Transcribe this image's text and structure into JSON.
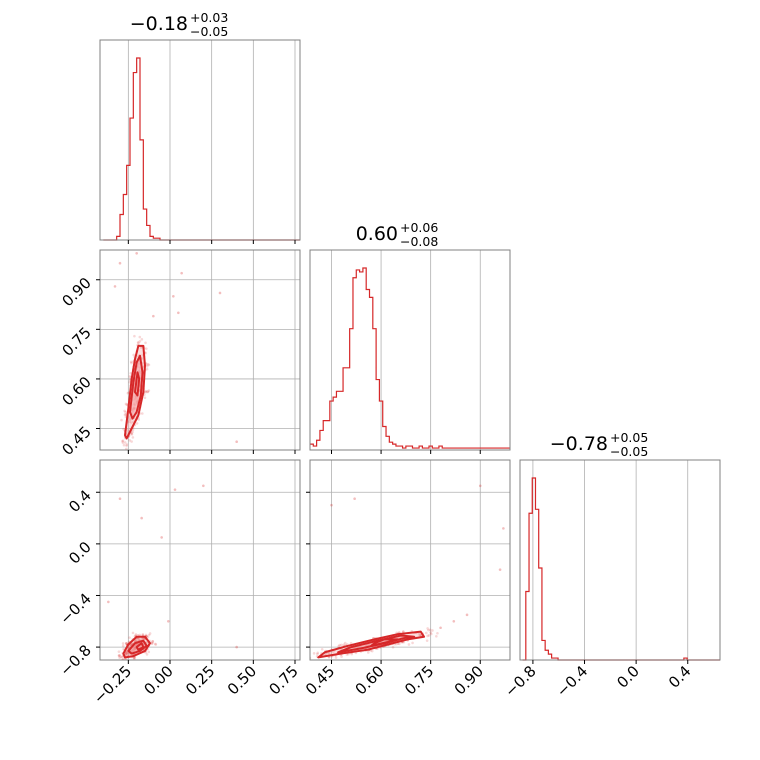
{
  "chart_data": {
    "type": "corner",
    "parameters": [
      {
        "title": {
          "median": "−0.18",
          "plus": "+0.03",
          "minus": "−0.05"
        },
        "range": [
          -0.42,
          0.78
        ],
        "ticks": [
          -0.25,
          0.0,
          0.25,
          0.5,
          0.75
        ],
        "tick_labels": [
          "−0.25",
          "0.00",
          "0.25",
          "0.50",
          "0.75"
        ]
      },
      {
        "title": {
          "median": "0.60",
          "plus": "+0.06",
          "minus": "−0.08"
        },
        "range": [
          0.385,
          0.99
        ],
        "ticks": [
          0.45,
          0.6,
          0.75,
          0.9
        ],
        "tick_labels": [
          "0.45",
          "0.60",
          "0.75",
          "0.90"
        ]
      },
      {
        "title": {
          "median": "−0.78",
          "plus": "+0.05",
          "minus": "−0.05"
        },
        "range": [
          -0.9,
          0.65
        ],
        "ticks": [
          -0.8,
          -0.4,
          0.0,
          0.4
        ],
        "tick_labels": [
          "−0.8",
          "−0.4",
          "0.0",
          "0.4"
        ]
      }
    ],
    "histograms": [
      {
        "param": 0,
        "bin_edges_start": -0.4,
        "bin_width": 0.02,
        "counts": [
          0,
          0,
          0,
          0,
          0.02,
          0.14,
          0.25,
          0.41,
          0.67,
          0.92,
          1.0,
          0.55,
          0.17,
          0.08,
          0.02,
          0.01,
          0.01,
          0,
          0,
          0,
          0,
          0,
          0,
          0,
          0,
          0,
          0,
          0,
          0,
          0,
          0,
          0,
          0,
          0,
          0,
          0,
          0,
          0,
          0,
          0,
          0,
          0,
          0,
          0,
          0,
          0,
          0,
          0,
          0,
          0,
          0,
          0,
          0,
          0,
          0,
          0,
          0,
          0,
          0,
          0
        ]
      },
      {
        "param": 1,
        "bin_edges_start": 0.385,
        "bin_width": 0.01,
        "counts": [
          0.03,
          0.02,
          0.05,
          0.1,
          0.15,
          0.15,
          0.25,
          0.27,
          0.3,
          0.3,
          0.42,
          0.42,
          0.62,
          0.88,
          0.92,
          0.91,
          0.93,
          0.82,
          0.78,
          0.62,
          0.36,
          0.25,
          0.12,
          0.07,
          0.04,
          0.03,
          0.02,
          0.02,
          0.01,
          0.02,
          0.02,
          0.01,
          0.01,
          0.02,
          0.01,
          0.01,
          0.02,
          0.01,
          0.01,
          0.02,
          0.01,
          0.01,
          0.01,
          0.01,
          0.01,
          0.01,
          0.01,
          0.01,
          0.01,
          0.01,
          0.01,
          0.01,
          0.01,
          0.01,
          0.01,
          0.01,
          0.01,
          0.01,
          0.01,
          0.01,
          0.01
        ]
      },
      {
        "param": 2,
        "bin_edges_start": -0.88,
        "bin_width": 0.025,
        "counts": [
          0,
          0.35,
          0.75,
          0.93,
          0.77,
          0.47,
          0.1,
          0.05,
          0.03,
          0.01,
          0.01,
          0,
          0,
          0,
          0,
          0,
          0,
          0,
          0,
          0,
          0,
          0,
          0,
          0,
          0,
          0,
          0,
          0,
          0,
          0,
          0,
          0,
          0,
          0,
          0,
          0,
          0,
          0,
          0,
          0,
          0,
          0,
          0,
          0,
          0,
          0,
          0,
          0,
          0,
          0,
          0.01,
          0,
          0,
          0,
          0,
          0,
          0,
          0,
          0,
          0,
          0,
          0
        ]
      }
    ],
    "density_2d": [
      {
        "x_param": 0,
        "y_param": 1,
        "center": [
          -0.2,
          0.6
        ],
        "contours": [
          [
            [
              -0.27,
              0.43
            ],
            [
              -0.25,
              0.51
            ],
            [
              -0.23,
              0.6
            ],
            [
              -0.21,
              0.66
            ],
            [
              -0.19,
              0.7
            ],
            [
              -0.16,
              0.7
            ],
            [
              -0.15,
              0.64
            ],
            [
              -0.16,
              0.56
            ],
            [
              -0.19,
              0.49
            ],
            [
              -0.23,
              0.45
            ],
            [
              -0.26,
              0.42
            ]
          ],
          [
            [
              -0.24,
              0.5
            ],
            [
              -0.22,
              0.59
            ],
            [
              -0.2,
              0.65
            ],
            [
              -0.18,
              0.67
            ],
            [
              -0.165,
              0.62
            ],
            [
              -0.175,
              0.55
            ],
            [
              -0.2,
              0.5
            ],
            [
              -0.225,
              0.48
            ]
          ],
          [
            [
              -0.21,
              0.56
            ],
            [
              -0.195,
              0.62
            ],
            [
              -0.185,
              0.6
            ],
            [
              -0.195,
              0.55
            ]
          ]
        ],
        "outliers": [
          [
            -0.3,
            0.95
          ],
          [
            -0.2,
            0.98
          ],
          [
            0.07,
            0.92
          ],
          [
            0.02,
            0.85
          ],
          [
            0.3,
            0.86
          ],
          [
            0.4,
            0.41
          ],
          [
            -0.33,
            0.88
          ],
          [
            -0.1,
            0.79
          ],
          [
            0.05,
            0.8
          ]
        ]
      },
      {
        "x_param": 0,
        "y_param": 2,
        "center": [
          -0.2,
          -0.78
        ],
        "contours": [
          [
            [
              -0.28,
              -0.85
            ],
            [
              -0.25,
              -0.78
            ],
            [
              -0.2,
              -0.72
            ],
            [
              -0.15,
              -0.72
            ],
            [
              -0.12,
              -0.77
            ],
            [
              -0.15,
              -0.83
            ],
            [
              -0.22,
              -0.87
            ],
            [
              -0.27,
              -0.88
            ]
          ],
          [
            [
              -0.25,
              -0.83
            ],
            [
              -0.21,
              -0.77
            ],
            [
              -0.16,
              -0.75
            ],
            [
              -0.14,
              -0.79
            ],
            [
              -0.18,
              -0.83
            ],
            [
              -0.23,
              -0.85
            ]
          ],
          [
            [
              -0.2,
              -0.8
            ],
            [
              -0.17,
              -0.77
            ],
            [
              -0.16,
              -0.8
            ],
            [
              -0.19,
              -0.82
            ]
          ]
        ],
        "outliers": [
          [
            -0.37,
            -0.45
          ],
          [
            -0.3,
            0.35
          ],
          [
            0.03,
            0.42
          ],
          [
            -0.17,
            0.2
          ],
          [
            0.2,
            0.45
          ],
          [
            -0.01,
            -0.6
          ],
          [
            0.4,
            -0.8
          ],
          [
            -0.05,
            0.05
          ]
        ]
      },
      {
        "x_param": 1,
        "y_param": 2,
        "center": [
          0.6,
          -0.78
        ],
        "contours": [
          [
            [
              0.41,
              -0.88
            ],
            [
              0.48,
              -0.85
            ],
            [
              0.56,
              -0.82
            ],
            [
              0.62,
              -0.78
            ],
            [
              0.68,
              -0.74
            ],
            [
              0.73,
              -0.72
            ],
            [
              0.72,
              -0.68
            ],
            [
              0.65,
              -0.7
            ],
            [
              0.58,
              -0.74
            ],
            [
              0.5,
              -0.79
            ],
            [
              0.43,
              -0.84
            ]
          ],
          [
            [
              0.47,
              -0.84
            ],
            [
              0.54,
              -0.81
            ],
            [
              0.61,
              -0.77
            ],
            [
              0.67,
              -0.73
            ],
            [
              0.7,
              -0.72
            ],
            [
              0.66,
              -0.71
            ],
            [
              0.59,
              -0.75
            ],
            [
              0.51,
              -0.8
            ]
          ],
          [
            [
              0.57,
              -0.79
            ],
            [
              0.62,
              -0.76
            ],
            [
              0.65,
              -0.74
            ],
            [
              0.61,
              -0.74
            ],
            [
              0.58,
              -0.77
            ]
          ]
        ],
        "outliers": [
          [
            0.52,
            0.35
          ],
          [
            0.9,
            0.45
          ],
          [
            0.97,
            0.12
          ],
          [
            0.82,
            -0.6
          ],
          [
            0.86,
            -0.55
          ],
          [
            0.96,
            -0.2
          ],
          [
            0.45,
            0.3
          ],
          [
            0.78,
            -0.65
          ]
        ]
      }
    ],
    "colors": {
      "line": "#d62728",
      "fill": "#f4a3a4",
      "grid": "#b0b0b0",
      "frame": "#808080"
    },
    "grid": true
  }
}
